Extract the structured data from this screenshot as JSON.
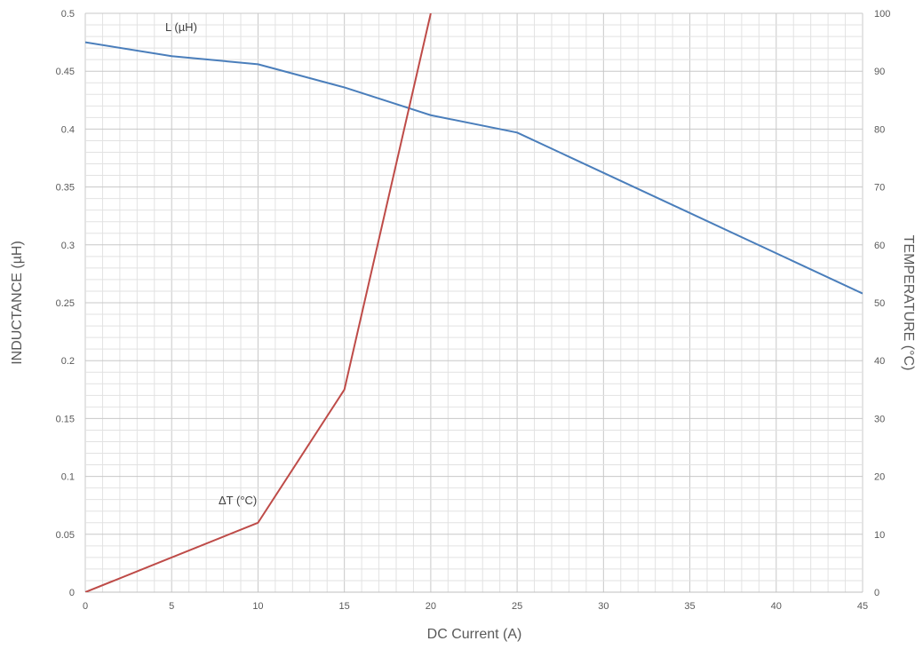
{
  "chart_data": {
    "type": "line",
    "xlabel": "DC Current (A)",
    "ylabel_left": "INDUCTANCE (µH)",
    "ylabel_right": "TEMPERATURE (°C)",
    "xlim": [
      0,
      45
    ],
    "ylim_left": [
      0,
      0.5
    ],
    "ylim_right": [
      0,
      100
    ],
    "x_ticks": [
      "0",
      "5",
      "10",
      "15",
      "20",
      "25",
      "30",
      "35",
      "40",
      "45"
    ],
    "y_left_ticks": [
      "0",
      "0.05",
      "0.1",
      "0.15",
      "0.2",
      "0.25",
      "0.3",
      "0.35",
      "0.4",
      "0.45",
      "0.5"
    ],
    "y_right_ticks": [
      "0",
      "10",
      "20",
      "30",
      "40",
      "50",
      "60",
      "70",
      "80",
      "90",
      "100"
    ],
    "grid": true,
    "series": [
      {
        "name": "L (µH)",
        "axis": "left",
        "color": "#4a7ebb",
        "x": [
          0,
          5,
          10,
          15,
          20,
          25,
          45
        ],
        "y": [
          0.475,
          0.463,
          0.456,
          0.436,
          0.412,
          0.397,
          0.258
        ]
      },
      {
        "name": "ΔT (°C)",
        "axis": "right",
        "color": "#be4b48",
        "x": [
          0,
          10,
          15,
          20
        ],
        "y": [
          0,
          12,
          35,
          100
        ]
      }
    ]
  }
}
